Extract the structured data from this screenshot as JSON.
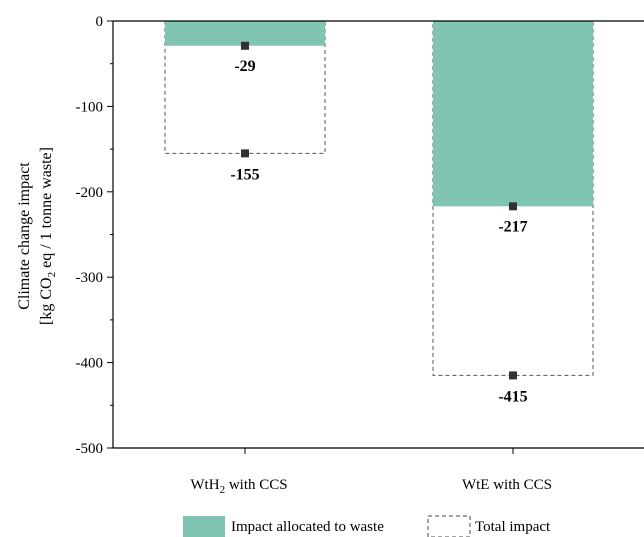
{
  "chart_data": {
    "type": "bar",
    "categories": [
      "WtH2 with CCS",
      "WtE with CCS"
    ],
    "category_labels": [
      {
        "main": "WtH",
        "sub": "2",
        "rest": " with CCS"
      },
      {
        "main": "WtE with CCS",
        "sub": "",
        "rest": ""
      }
    ],
    "series": [
      {
        "name": "Impact allocated to waste",
        "values": [
          -29,
          -217
        ],
        "color": "#80c4b3",
        "style": "filled"
      },
      {
        "name": "Total impact",
        "values": [
          -155,
          -415
        ],
        "color": "#555555",
        "style": "dashed-outline"
      }
    ],
    "data_labels": {
      "impact_allocated": [
        "-29",
        "-217"
      ],
      "total_impact": [
        "-155",
        "-415"
      ]
    },
    "ylim": [
      -500,
      0
    ],
    "yticks": [
      0,
      -100,
      -200,
      -300,
      -400,
      -500
    ],
    "ytick_labels": [
      "0",
      "-100",
      "-200",
      "-300",
      "-400",
      "-500"
    ],
    "ylabel_line1": "Climate change impact",
    "ylabel_line2": {
      "before": "[kg CO",
      "sub": "2",
      "after": " eq / 1 tonne waste]"
    },
    "legend_position": "bottom-center",
    "grid": false
  }
}
